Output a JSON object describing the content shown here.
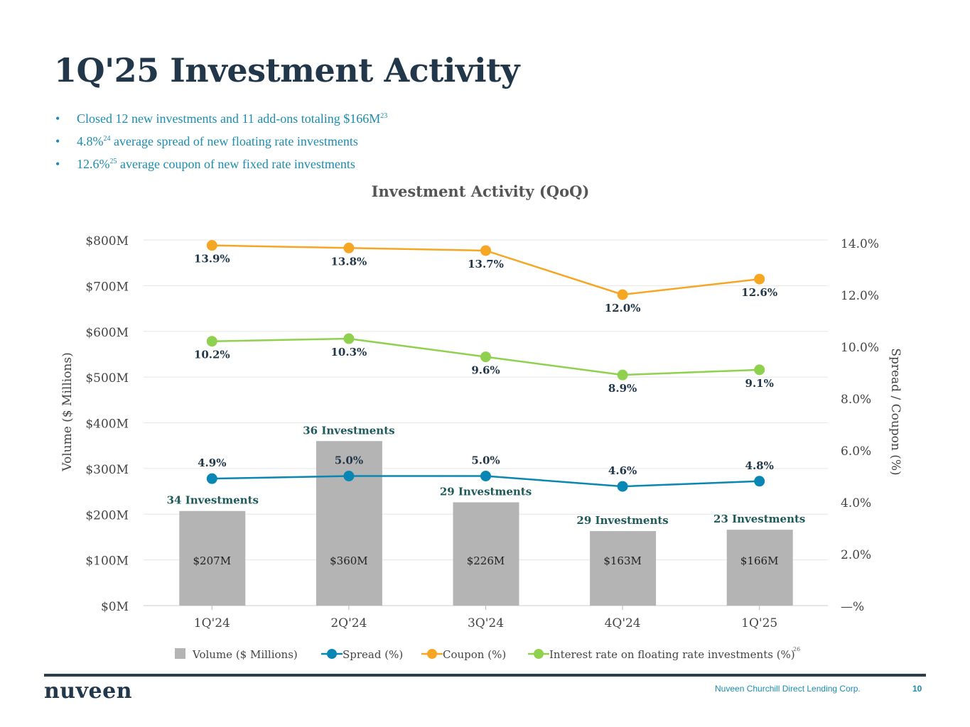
{
  "title": "1Q'25 Investment Activity",
  "bullets": [
    {
      "text": "Closed 12 new investments and 11 add-ons totaling $166M",
      "sup": "23"
    },
    {
      "pre": "4.8%",
      "sup": "24",
      "text": " average spread of new floating rate investments"
    },
    {
      "pre": "12.6%",
      "sup": "25",
      "text": " average coupon of new fixed rate investments"
    }
  ],
  "footer": {
    "logo": "nuveen",
    "company": "Nuveen Churchill Direct Lending Corp.",
    "page": "10"
  },
  "chart_data": {
    "type": "bar+line",
    "title": "Investment Activity (QoQ)",
    "categories": [
      "1Q'24",
      "2Q'24",
      "3Q'24",
      "4Q'24",
      "1Q'25"
    ],
    "ylabel_left": "Volume ($ Millions)",
    "ylabel_right": "Spread / Coupon (%)",
    "ylim_left": [
      0,
      800
    ],
    "ylim_right": [
      0,
      14
    ],
    "left_ticks": [
      "$0M",
      "$100M",
      "$200M",
      "$300M",
      "$400M",
      "$500M",
      "$600M",
      "$700M",
      "$800M"
    ],
    "right_ticks": [
      "—%",
      "2.0%",
      "4.0%",
      "6.0%",
      "8.0%",
      "10.0%",
      "12.0%",
      "14.0%"
    ],
    "grid": true,
    "legend_position": "bottom",
    "legend_footnote": "26",
    "bars": {
      "name": "Volume ($ Millions)",
      "color": "#b4b4b4",
      "values": [
        207,
        360,
        226,
        163,
        166
      ],
      "labels": [
        "$207M",
        "$360M",
        "$226M",
        "$163M",
        "$166M"
      ],
      "counts": [
        "34 Investments",
        "36 Investments",
        "29 Investments",
        "29 Investments",
        "23 Investments"
      ]
    },
    "series": [
      {
        "name": "Spread (%)",
        "color": "#0a86b4",
        "values": [
          4.9,
          5.0,
          5.0,
          4.6,
          4.8
        ],
        "labels": [
          "4.9%",
          "5.0%",
          "5.0%",
          "4.6%",
          "4.8%"
        ]
      },
      {
        "name": "Coupon (%)",
        "color": "#f5a623",
        "values": [
          13.9,
          13.8,
          13.7,
          12.0,
          12.6
        ],
        "labels": [
          "13.9%",
          "13.8%",
          "13.7%",
          "12.0%",
          "12.6%"
        ]
      },
      {
        "name": "Interest rate on floating rate investments (%)",
        "color": "#8fd14f",
        "values": [
          10.2,
          10.3,
          9.6,
          8.9,
          9.1
        ],
        "labels": [
          "10.2%",
          "10.3%",
          "9.6%",
          "8.9%",
          "9.1%"
        ]
      }
    ],
    "label_color": "#22384a",
    "count_color": "#1e5a5a"
  }
}
